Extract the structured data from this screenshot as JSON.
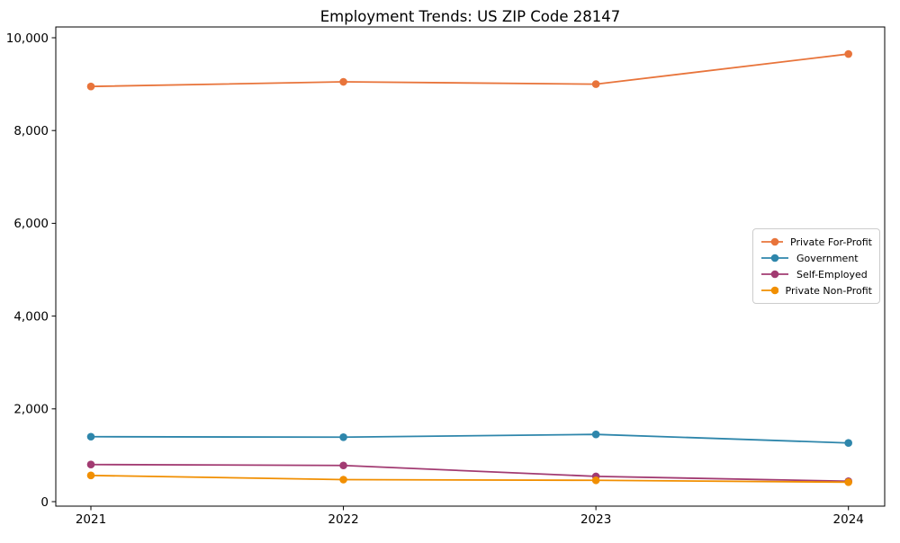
{
  "chart_data": {
    "type": "line",
    "title": "Employment Trends: US ZIP Code 28147",
    "xlabel": "",
    "ylabel": "",
    "x": [
      2021,
      2022,
      2023,
      2024
    ],
    "x_tick_labels": [
      "2021",
      "2022",
      "2023",
      "2024"
    ],
    "y_ticks": [
      0,
      2000,
      4000,
      6000,
      8000,
      10000
    ],
    "y_tick_labels": [
      "0",
      "2,000",
      "4,000",
      "6,000",
      "8,000",
      "10,000"
    ],
    "ylim": [
      0,
      10000
    ],
    "grid": false,
    "legend_position": "center-right",
    "series": [
      {
        "name": "Private For-Profit",
        "color": "#e8743b",
        "values": [
          8950,
          9050,
          9000,
          9650
        ]
      },
      {
        "name": "Government",
        "color": "#2e86ab",
        "values": [
          1400,
          1390,
          1450,
          1265
        ]
      },
      {
        "name": "Self-Employed",
        "color": "#a23b72",
        "values": [
          800,
          780,
          545,
          440
        ]
      },
      {
        "name": "Private Non-Profit",
        "color": "#f18f01",
        "values": [
          565,
          475,
          460,
          420
        ]
      }
    ],
    "axis_color": "#000000",
    "background_color": "#ffffff"
  }
}
